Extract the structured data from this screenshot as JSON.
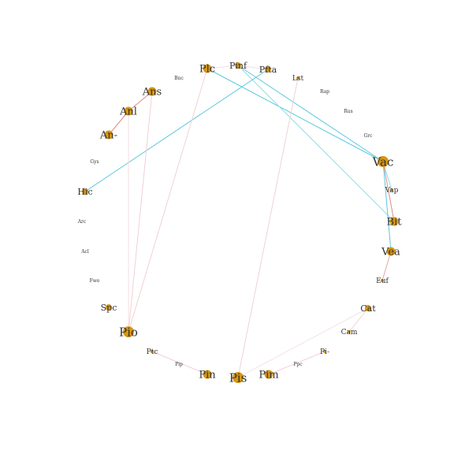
{
  "diagram": {
    "title": "",
    "nodes": [
      {
        "id": "Plc",
        "label": "Plc",
        "size": "medium"
      },
      {
        "id": "Pinf",
        "label": "Pinf",
        "size": "small"
      },
      {
        "id": "Pfta",
        "label": "Pfta",
        "size": "small"
      },
      {
        "id": "Lst",
        "label": "Lst",
        "size": "tiny"
      },
      {
        "id": "Rap",
        "label": "Rap",
        "size": "none"
      },
      {
        "id": "Rus",
        "label": "Rus",
        "size": "none"
      },
      {
        "id": "Grc",
        "label": "Grc",
        "size": "none"
      },
      {
        "id": "Vac",
        "label": "Vac",
        "size": "large"
      },
      {
        "id": "Vap",
        "label": "Vap",
        "size": "tiny"
      },
      {
        "id": "Bit",
        "label": "Bit",
        "size": "medium"
      },
      {
        "id": "Vea",
        "label": "Vea",
        "size": "medium"
      },
      {
        "id": "Euf",
        "label": "Euf",
        "size": "tiny"
      },
      {
        "id": "Cat",
        "label": "Cat",
        "size": "small"
      },
      {
        "id": "Cam",
        "label": "Cam",
        "size": "tiny"
      },
      {
        "id": "Pi-",
        "label": "Pi-",
        "size": "tiny"
      },
      {
        "id": "Ppc",
        "label": "Ppc",
        "size": "none"
      },
      {
        "id": "Pim",
        "label": "Pim",
        "size": "medium"
      },
      {
        "id": "Pis",
        "label": "Pis",
        "size": "large"
      },
      {
        "id": "Pin",
        "label": "Pin",
        "size": "medium"
      },
      {
        "id": "Pip",
        "label": "Pip",
        "size": "none"
      },
      {
        "id": "Ptc",
        "label": "Ptc",
        "size": "tiny"
      },
      {
        "id": "Pio",
        "label": "Pio",
        "size": "large"
      },
      {
        "id": "Spc",
        "label": "Spc",
        "size": "small"
      },
      {
        "id": "Fwe",
        "label": "Fwe",
        "size": "none"
      },
      {
        "id": "Acl",
        "label": "Acl",
        "size": "none"
      },
      {
        "id": "Arc",
        "label": "Arc",
        "size": "none"
      },
      {
        "id": "Hic",
        "label": "Hic",
        "size": "small"
      },
      {
        "id": "Gys",
        "label": "Gys",
        "size": "none"
      },
      {
        "id": "An-",
        "label": "An-",
        "size": "medium"
      },
      {
        "id": "Anl",
        "label": "Anl",
        "size": "medium"
      },
      {
        "id": "Ans",
        "label": "Ans",
        "size": "medium"
      },
      {
        "id": "Bnc",
        "label": "Bnc",
        "size": "none"
      }
    ],
    "edges": [
      {
        "source": "Plc",
        "target": "Vac",
        "color": "#5bc8dc"
      },
      {
        "source": "Pinf",
        "target": "Vac",
        "color": "#5bc8dc"
      },
      {
        "source": "Pinf",
        "target": "Bit",
        "color": "#8fdbe6"
      },
      {
        "source": "Pfta",
        "target": "Hic",
        "color": "#5bc8dc"
      },
      {
        "source": "Vac",
        "target": "Vea",
        "color": "#5bc8dc"
      },
      {
        "source": "Vac",
        "target": "Bit",
        "color": "#e08a8a"
      },
      {
        "source": "Vac",
        "target": "Vap",
        "color": "#8fdbe6"
      },
      {
        "source": "Vea",
        "target": "Euf",
        "color": "#e8a4a4"
      },
      {
        "source": "Ans",
        "target": "Anl",
        "color": "#e08a8a"
      },
      {
        "source": "Anl",
        "target": "An-",
        "color": "#e08a8a"
      },
      {
        "source": "Plc",
        "target": "Pio",
        "color": "#f2d0d6"
      },
      {
        "source": "Ans",
        "target": "Pio",
        "color": "#f2d0d6"
      },
      {
        "source": "Anl",
        "target": "Pio",
        "color": "#f4dde2"
      },
      {
        "source": "Lst",
        "target": "Pis",
        "color": "#f2d0d6"
      },
      {
        "source": "Cat",
        "target": "Pis",
        "color": "#f2e4e6"
      },
      {
        "source": "Cat",
        "target": "Cam",
        "color": "#f2d0d6"
      },
      {
        "source": "Pi-",
        "target": "Pim",
        "color": "#f2d0d6"
      },
      {
        "source": "Ptc",
        "target": "Pin",
        "color": "#f2d0d6"
      },
      {
        "source": "Plc",
        "target": "Pinf",
        "color": "#f4dde2"
      },
      {
        "source": "Pinf",
        "target": "Pfta",
        "color": "#f4dde2"
      }
    ]
  }
}
